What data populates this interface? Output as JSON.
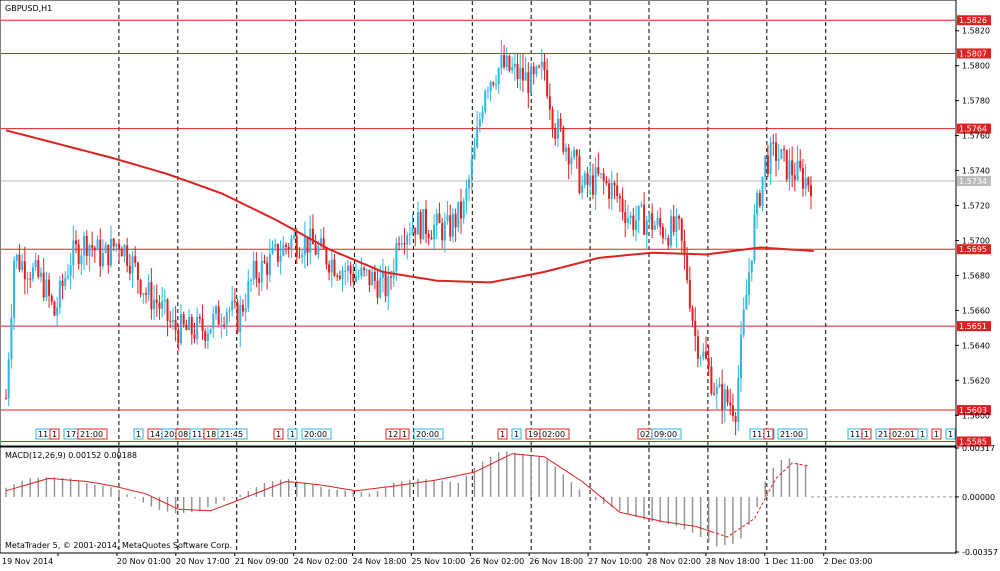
{
  "window": {
    "title": "GBPUSD,H1",
    "footer": "MetaTrader 5, © 2001-2014, MetaQuotes Software Corp."
  },
  "colors": {
    "bull": "#2eb4e6",
    "bear": "#e02020",
    "ma": "#dd2222",
    "level": "#e02020",
    "macd_hist": "#909090",
    "macd_signal": "#dd2222",
    "grid": "#000000",
    "current_price": "#bbbbbb"
  },
  "chart_data": [
    {
      "type": "candlestick",
      "title": "GBPUSD,H1",
      "ylim": [
        1.5583,
        1.5837
      ],
      "x_tick_labels": [
        "19 Nov 2014",
        "20 Nov 01:00",
        "20 Nov 17:00",
        "21 Nov 09:00",
        "24 Nov 02:00",
        "24 Nov 18:00",
        "25 Nov 10:00",
        "26 Nov 02:00",
        "26 Nov 18:00",
        "27 Nov 10:00",
        "28 Nov 02:00",
        "28 Nov 18:00",
        "1 Dec 11:00",
        "2 Dec 03:00"
      ],
      "y_tick_labels": [
        "1.5820",
        "1.5800",
        "1.5780",
        "1.5760",
        "1.5740",
        "1.5720",
        "1.5700",
        "1.5680",
        "1.5660",
        "1.5640",
        "1.5620",
        "1.5600"
      ],
      "y_ticks": [
        1.582,
        1.58,
        1.578,
        1.576,
        1.574,
        1.572,
        1.57,
        1.568,
        1.566,
        1.564,
        1.562,
        1.56
      ],
      "levels": [
        {
          "label": "1.5826",
          "value": 1.5826
        },
        {
          "label": "1.5807",
          "value": 1.5807
        },
        {
          "label": "1.5764",
          "value": 1.5764
        },
        {
          "label": "1.5695",
          "value": 1.5695
        },
        {
          "label": "1.5651",
          "value": 1.5651
        },
        {
          "label": "1.5603",
          "value": 1.5603
        },
        {
          "label": "1.5585",
          "value": 1.5585
        }
      ],
      "current_price": {
        "label": "1.5734",
        "value": 1.5734
      },
      "moving_average": [
        [
          0,
          1.5763
        ],
        [
          20,
          1.5755
        ],
        [
          40,
          1.5747
        ],
        [
          60,
          1.5738
        ],
        [
          80,
          1.5727
        ],
        [
          100,
          1.5712
        ],
        [
          120,
          1.5695
        ],
        [
          140,
          1.5682
        ],
        [
          160,
          1.5677
        ],
        [
          180,
          1.5676
        ],
        [
          200,
          1.5682
        ],
        [
          220,
          1.569
        ],
        [
          240,
          1.5693
        ],
        [
          260,
          1.5692
        ],
        [
          280,
          1.5696
        ],
        [
          300,
          1.5694
        ]
      ],
      "candle_anchors": [
        [
          0,
          1.561
        ],
        [
          3,
          1.569
        ],
        [
          8,
          1.5685
        ],
        [
          14,
          1.5675
        ],
        [
          18,
          1.5658
        ],
        [
          24,
          1.569
        ],
        [
          30,
          1.57
        ],
        [
          36,
          1.569
        ],
        [
          42,
          1.57
        ],
        [
          46,
          1.569
        ],
        [
          52,
          1.567
        ],
        [
          56,
          1.5665
        ],
        [
          62,
          1.565
        ],
        [
          68,
          1.5648
        ],
        [
          74,
          1.565
        ],
        [
          78,
          1.5655
        ],
        [
          82,
          1.5662
        ],
        [
          86,
          1.5655
        ],
        [
          92,
          1.568
        ],
        [
          98,
          1.5688
        ],
        [
          106,
          1.57
        ],
        [
          112,
          1.5699
        ],
        [
          118,
          1.5692
        ],
        [
          124,
          1.5685
        ],
        [
          130,
          1.568
        ],
        [
          136,
          1.5678
        ],
        [
          142,
          1.5672
        ],
        [
          146,
          1.5705
        ],
        [
          152,
          1.571
        ],
        [
          158,
          1.5708
        ],
        [
          164,
          1.5706
        ],
        [
          170,
          1.5718
        ],
        [
          174,
          1.575
        ],
        [
          178,
          1.579
        ],
        [
          184,
          1.58
        ],
        [
          190,
          1.5795
        ],
        [
          196,
          1.579
        ],
        [
          200,
          1.5798
        ],
        [
          204,
          1.5765
        ],
        [
          210,
          1.575
        ],
        [
          214,
          1.573
        ],
        [
          220,
          1.5735
        ],
        [
          226,
          1.5728
        ],
        [
          232,
          1.5712
        ],
        [
          238,
          1.5712
        ],
        [
          244,
          1.5706
        ],
        [
          250,
          1.5705
        ],
        [
          253,
          1.568
        ],
        [
          256,
          1.5645
        ],
        [
          260,
          1.563
        ],
        [
          264,
          1.5612
        ],
        [
          268,
          1.5608
        ],
        [
          271,
          1.5605
        ],
        [
          274,
          1.5655
        ],
        [
          278,
          1.571
        ],
        [
          282,
          1.5745
        ],
        [
          286,
          1.575
        ],
        [
          290,
          1.5742
        ],
        [
          294,
          1.5738
        ],
        [
          298,
          1.5734
        ]
      ],
      "time_markers": [
        {
          "label": "11",
          "slot": 2,
          "color": "#2eb4e6"
        },
        {
          "label": "1",
          "slot": 3,
          "color": "#e02020"
        },
        {
          "label": "17:",
          "slot": 4,
          "color": "#2eb4e6"
        },
        {
          "label": "21:00",
          "slot": 5,
          "color": "#e02020"
        },
        {
          "label": "1",
          "slot": 9,
          "color": "#2eb4e6"
        },
        {
          "label": "14:45",
          "slot": 10,
          "color": "#e02020"
        },
        {
          "label": "20:30",
          "slot": 11,
          "color": "#2eb4e6"
        },
        {
          "label": "08:30",
          "slot": 12,
          "color": "#e02020"
        },
        {
          "label": "11:30",
          "slot": 13,
          "color": "#2eb4e6"
        },
        {
          "label": "18",
          "slot": 14,
          "color": "#e02020"
        },
        {
          "label": "21:45",
          "slot": 15,
          "color": "#2eb4e6"
        },
        {
          "label": "1",
          "slot": 19,
          "color": "#e02020"
        },
        {
          "label": "1",
          "slot": 20,
          "color": "#2eb4e6"
        },
        {
          "label": "20:00",
          "slot": 21,
          "color": "#2eb4e6"
        },
        {
          "label": "12",
          "slot": 27,
          "color": "#e02020"
        },
        {
          "label": "1",
          "slot": 28,
          "color": "#e02020"
        },
        {
          "label": "20:00",
          "slot": 29,
          "color": "#2eb4e6"
        },
        {
          "label": "1",
          "slot": 35,
          "color": "#e02020"
        },
        {
          "label": "1",
          "slot": 36,
          "color": "#2eb4e6"
        },
        {
          "label": "19:00",
          "slot": 37,
          "color": "#e02020"
        },
        {
          "label": "02:00",
          "slot": 38,
          "color": "#e02020"
        },
        {
          "label": "02:05",
          "slot": 45,
          "color": "#e02020"
        },
        {
          "label": "09:00",
          "slot": 46,
          "color": "#2eb4e6"
        },
        {
          "label": "11:3",
          "slot": 53,
          "color": "#2eb4e6"
        },
        {
          "label": "1",
          "slot": 54,
          "color": "#e02020"
        },
        {
          "label": "21:00",
          "slot": 55,
          "color": "#2eb4e6"
        },
        {
          "label": "11:",
          "slot": 60,
          "color": "#2eb4e6"
        },
        {
          "label": "1",
          "slot": 61,
          "color": "#e02020"
        },
        {
          "label": "21:0",
          "slot": 62,
          "color": "#2eb4e6"
        },
        {
          "label": "02:01",
          "slot": 63,
          "color": "#e02020"
        },
        {
          "label": "1",
          "slot": 65,
          "color": "#2eb4e6"
        },
        {
          "label": "1",
          "slot": 66,
          "color": "#e02020"
        },
        {
          "label": "1",
          "slot": 67,
          "color": "#2eb4e6"
        }
      ]
    },
    {
      "type": "bar",
      "title": "MACD(12,26,9) 0.00152 0.00188",
      "ylim": [
        -0.00357,
        0.00317
      ],
      "y_tick_labels": [
        "0.00317",
        "0.00000",
        "-0.00357"
      ],
      "y_ticks": [
        0.00317,
        0.0,
        -0.00357
      ],
      "histogram_anchors": [
        [
          0,
          0.0006
        ],
        [
          8,
          0.0012
        ],
        [
          16,
          0.0013
        ],
        [
          24,
          0.0012
        ],
        [
          32,
          0.0008
        ],
        [
          40,
          0.0006
        ],
        [
          48,
          -0.0001
        ],
        [
          56,
          -0.0008
        ],
        [
          64,
          -0.0011
        ],
        [
          72,
          -0.0009
        ],
        [
          80,
          -0.0003
        ],
        [
          88,
          0.0002
        ],
        [
          96,
          0.0009
        ],
        [
          104,
          0.0012
        ],
        [
          112,
          0.0009
        ],
        [
          120,
          0.0005
        ],
        [
          128,
          0.0004
        ],
        [
          136,
          0.0002
        ],
        [
          144,
          0.0009
        ],
        [
          152,
          0.0012
        ],
        [
          160,
          0.0011
        ],
        [
          168,
          0.0009
        ],
        [
          176,
          0.0022
        ],
        [
          184,
          0.003
        ],
        [
          192,
          0.0028
        ],
        [
          200,
          0.0026
        ],
        [
          208,
          0.0013
        ],
        [
          216,
          0.0
        ],
        [
          224,
          -0.0006
        ],
        [
          232,
          -0.0012
        ],
        [
          240,
          -0.0016
        ],
        [
          248,
          -0.0018
        ],
        [
          256,
          -0.0024
        ],
        [
          264,
          -0.0032
        ],
        [
          272,
          -0.003
        ],
        [
          278,
          -0.0012
        ],
        [
          282,
          0.001
        ],
        [
          286,
          0.0022
        ],
        [
          290,
          0.0026
        ],
        [
          294,
          0.0022
        ],
        [
          298,
          0.002
        ]
      ],
      "signal_anchors": [
        [
          0,
          0.0004
        ],
        [
          16,
          0.0012
        ],
        [
          30,
          0.001
        ],
        [
          40,
          0.0007
        ],
        [
          52,
          0.0002
        ],
        [
          64,
          -0.0008
        ],
        [
          76,
          -0.0009
        ],
        [
          88,
          -0.0001
        ],
        [
          104,
          0.001
        ],
        [
          116,
          0.0008
        ],
        [
          130,
          0.0004
        ],
        [
          144,
          0.0007
        ],
        [
          160,
          0.0011
        ],
        [
          174,
          0.0016
        ],
        [
          188,
          0.0028
        ],
        [
          200,
          0.0026
        ],
        [
          214,
          0.001
        ],
        [
          228,
          -0.001
        ],
        [
          244,
          -0.0016
        ],
        [
          256,
          -0.0019
        ],
        [
          268,
          -0.0026
        ],
        [
          278,
          -0.0014
        ],
        [
          286,
          0.0012
        ],
        [
          292,
          0.0022
        ],
        [
          298,
          0.002
        ]
      ]
    }
  ]
}
